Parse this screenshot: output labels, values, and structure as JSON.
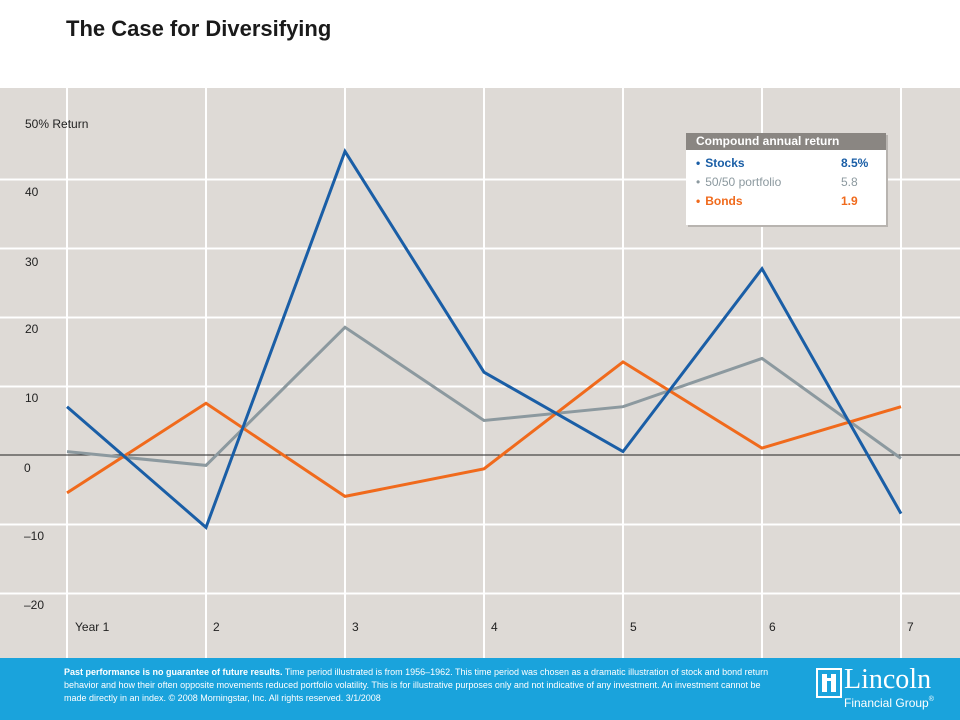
{
  "page": {
    "title": "The Case for Diversifying"
  },
  "chart_data": {
    "type": "line",
    "title": "The Case for Diversifying",
    "categories": [
      "Year 1",
      "2",
      "3",
      "4",
      "5",
      "6",
      "7"
    ],
    "series": [
      {
        "name": "Stocks",
        "values": [
          7,
          -10.5,
          44,
          12,
          0.5,
          27,
          -8.5
        ],
        "color": "#1a5ea6"
      },
      {
        "name": "50/50 portfolio",
        "values": [
          0.5,
          -1.5,
          18.5,
          5,
          7,
          14,
          -0.5
        ],
        "color": "#8c999f"
      },
      {
        "name": "Bonds",
        "values": [
          -5.5,
          7.5,
          -6,
          -2,
          13.5,
          1,
          7
        ],
        "color": "#f06a1c"
      }
    ],
    "yticks": [
      "50% Return",
      "40",
      "30",
      "20",
      "10",
      "0",
      "–10",
      "–20"
    ],
    "ylim": [
      -20,
      50
    ],
    "grid": true
  },
  "legend": {
    "header": "Compound annual return",
    "items": [
      {
        "label": "Stocks",
        "value": "8.5%",
        "color": "#1a5ea6"
      },
      {
        "label": "50/50 portfolio",
        "value": "5.8",
        "color": "#8c999f"
      },
      {
        "label": "Bonds",
        "value": "1.9",
        "color": "#f06a1c"
      }
    ]
  },
  "footer": {
    "bold": "Past performance is no guarantee of future results.",
    "text": " Time period illustrated is from 1956–1962. This time period was chosen as a dramatic illustration of stock and bond return behavior and how their often opposite movements reduced portfolio volatility. This is for illustrative purposes only and not indicative of any investment. An investment cannot be made directly in an index. © 2008 Morningstar, Inc. All rights reserved. 3/1/2008"
  },
  "logo": {
    "name": "Lincoln",
    "subtitle": "Financial Group",
    "mark": "®"
  }
}
